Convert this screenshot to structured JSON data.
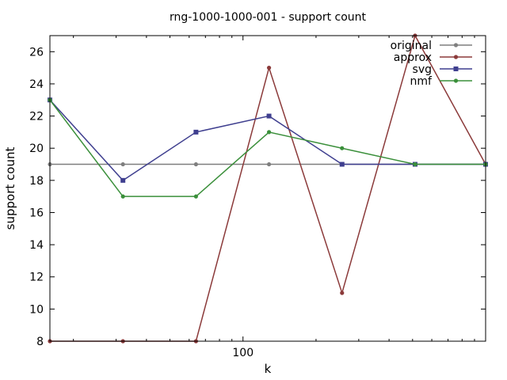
{
  "chart_data": {
    "type": "line",
    "title": "rng-1000-1000-001 - support count",
    "xlabel": "k",
    "ylabel": "support count",
    "xscale": "log",
    "xlim": [
      16,
      1000
    ],
    "ylim": [
      8,
      27
    ],
    "x": [
      16,
      32,
      64,
      128,
      256,
      512,
      1000
    ],
    "yticks": [
      8,
      10,
      12,
      14,
      16,
      18,
      20,
      22,
      24,
      26
    ],
    "xticks": [
      100
    ],
    "xtick_labels": [
      "100"
    ],
    "grid": false,
    "legend_position": "top-right",
    "series": [
      {
        "name": "original",
        "color": "#7f7f7f",
        "marker": "circle",
        "values": [
          19,
          19,
          19,
          19,
          19,
          19,
          19
        ]
      },
      {
        "name": "approx",
        "color": "#8b3a3a",
        "marker": "circle",
        "values": [
          8,
          8,
          8,
          25,
          11,
          27,
          19
        ]
      },
      {
        "name": "svg",
        "color": "#3f3f8f",
        "marker": "square",
        "values": [
          23,
          18,
          21,
          22,
          19,
          19,
          19
        ]
      },
      {
        "name": "nmf",
        "color": "#3a8f3a",
        "marker": "circle",
        "values": [
          23,
          17,
          17,
          21,
          20,
          19,
          19
        ]
      }
    ]
  }
}
